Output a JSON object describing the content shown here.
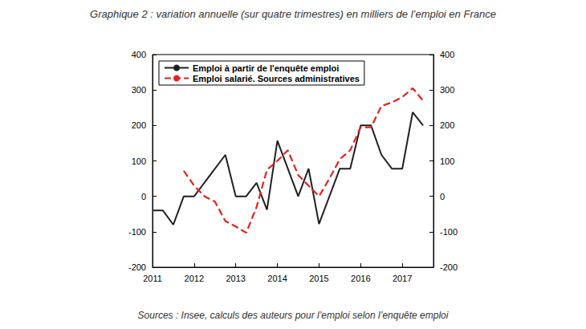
{
  "chart_data": {
    "type": "line",
    "title": "Graphique 2 : variation annuelle (sur quatre trimestres) en milliers de l’emploi en France",
    "source": "Sources : Insee, calculs des auteurs pour l’emploi selon l’enquête emploi",
    "xlim": [
      2011,
      2017.75
    ],
    "xticks": [
      2011,
      2012,
      2013,
      2014,
      2015,
      2016,
      2017
    ],
    "ylim": [
      -200,
      400
    ],
    "yticks": [
      -200,
      -100,
      0,
      100,
      200,
      300,
      400
    ],
    "y2lim": [
      -200,
      400
    ],
    "y2ticks": [
      -200,
      -100,
      0,
      100,
      200,
      300,
      400
    ],
    "grid": false,
    "legend": "upper left",
    "series": [
      {
        "name": "Emploi à partir de l'enquête emploi",
        "color": "#231f20",
        "line_style": "solid",
        "x": [
          2011,
          2011.25,
          2011.5,
          2011.75,
          2012,
          2012.75,
          2013,
          2013.25,
          2013.5,
          2013.75,
          2014,
          2014.5,
          2014.75,
          2015,
          2015.5,
          2015.75,
          2016,
          2016.25,
          2016.5,
          2016.75,
          2017,
          2017.25,
          2017.5
        ],
        "values": [
          -40,
          -40,
          -80,
          0,
          0,
          117,
          0,
          0,
          38,
          -38,
          157,
          0,
          78,
          -78,
          78,
          78,
          200,
          200,
          117,
          78,
          78,
          237,
          200
        ]
      },
      {
        "name": "Emploi salarié. Sources administratives",
        "color": "#e8211d",
        "line_style": "dashed",
        "x": [
          2011.75,
          2012,
          2012.25,
          2012.5,
          2012.75,
          2013,
          2013.25,
          2013.5,
          2013.75,
          2014,
          2014.25,
          2014.5,
          2014.75,
          2015,
          2015.25,
          2015.5,
          2015.75,
          2016,
          2016.25,
          2016.5,
          2016.75,
          2017,
          2017.25,
          2017.5
        ],
        "values": [
          72,
          30,
          0,
          -15,
          -70,
          -85,
          -103,
          -30,
          75,
          100,
          130,
          60,
          30,
          0,
          50,
          105,
          130,
          195,
          195,
          255,
          265,
          280,
          305,
          270
        ]
      }
    ]
  }
}
